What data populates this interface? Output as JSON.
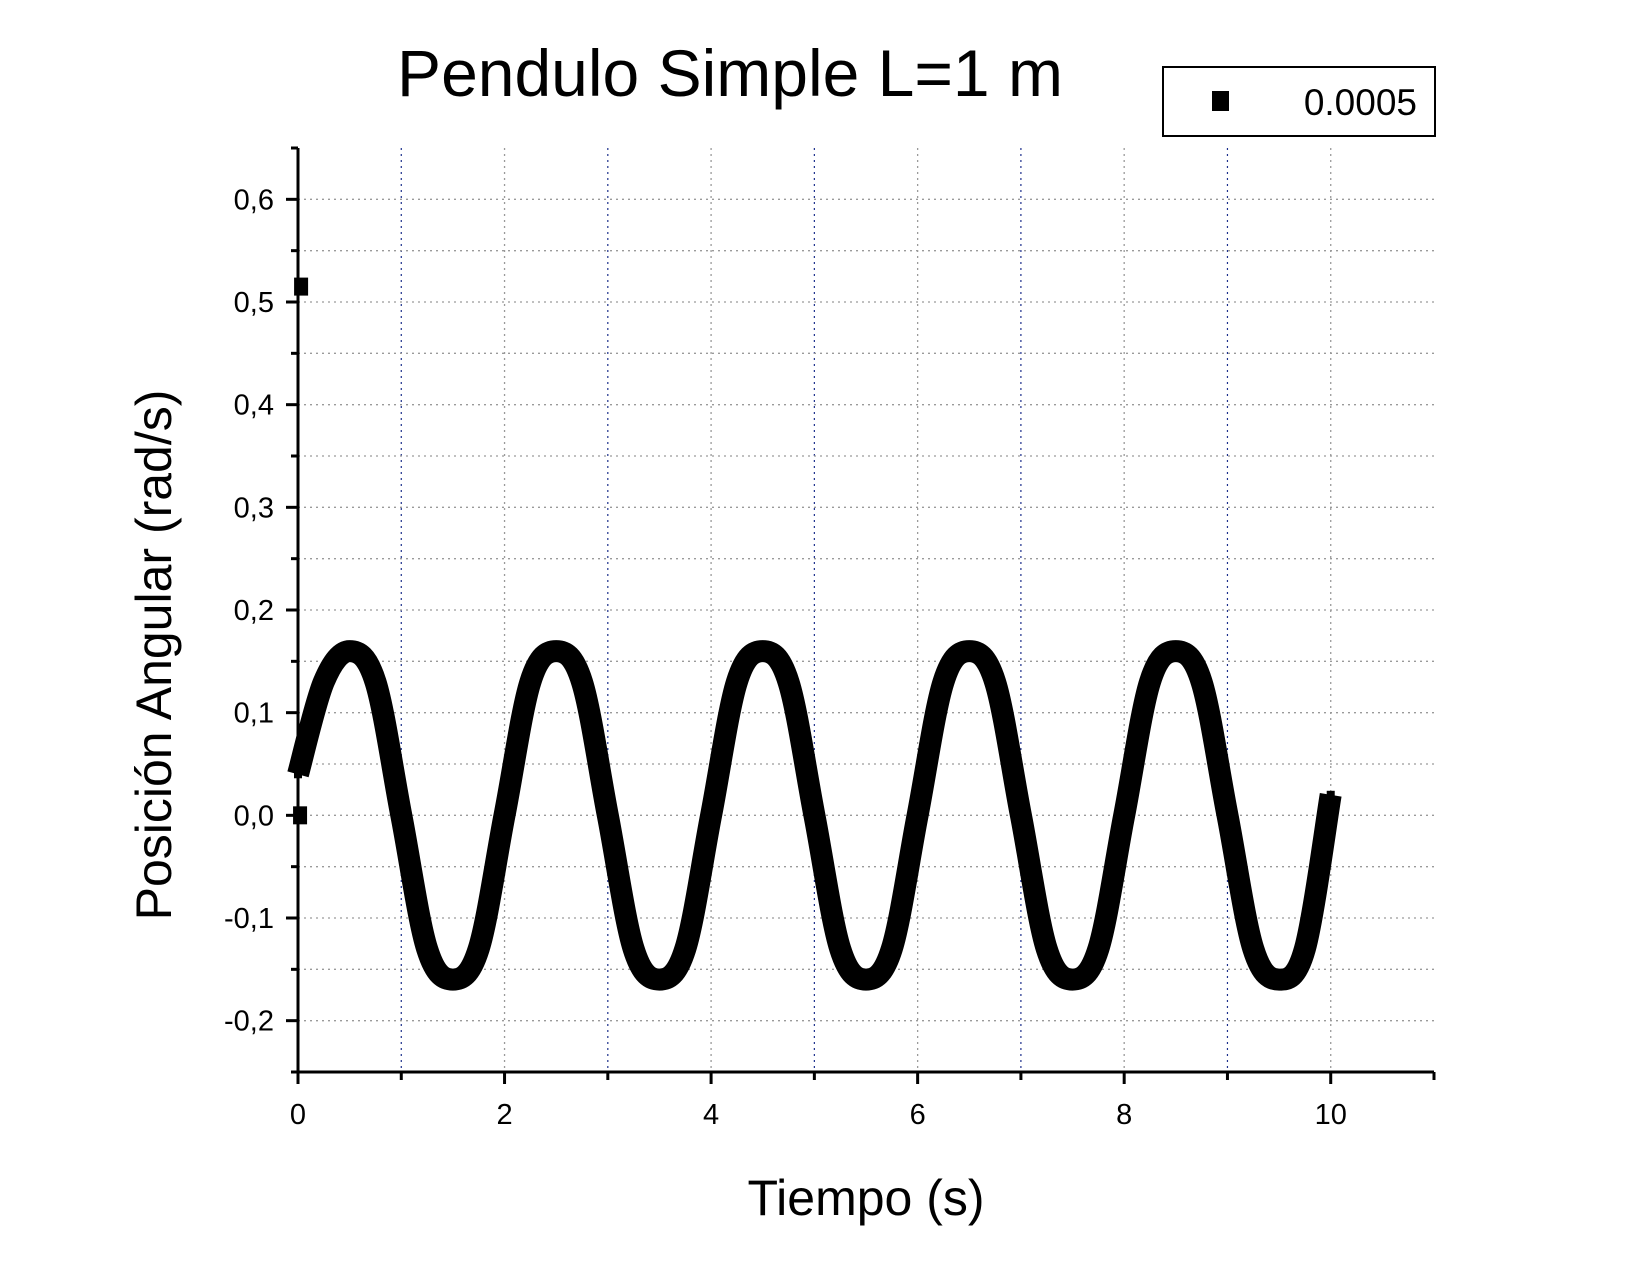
{
  "chart_data": {
    "type": "line",
    "title": "Pendulo Simple L=1 m",
    "xlabel": "Tiempo (s)",
    "ylabel": "Posición Angular (rad/s)",
    "xlim": [
      0,
      11
    ],
    "ylim": [
      -0.25,
      0.65
    ],
    "x_ticks": [
      0,
      2,
      4,
      6,
      8,
      10
    ],
    "x_tick_labels": [
      "0",
      "2",
      "4",
      "6",
      "8",
      "10"
    ],
    "y_ticks": [
      -0.2,
      -0.1,
      0.0,
      0.1,
      0.2,
      0.3,
      0.4,
      0.5,
      0.6
    ],
    "y_tick_labels": [
      "-0,2",
      "-0,1",
      "0,0",
      "0,1",
      "0,2",
      "0,3",
      "0,4",
      "0,5",
      "0,6"
    ],
    "grid": true,
    "legend_position": "top-right",
    "series": [
      {
        "name": "0.0005",
        "color": "#000000",
        "marker": "square",
        "outlier_points": [
          {
            "x": 0.03,
            "y": 0.515
          },
          {
            "x": 0.02,
            "y": 0.0
          }
        ],
        "x": [
          0.0,
          0.25,
          0.5,
          0.75,
          1.0,
          1.25,
          1.5,
          1.75,
          2.0,
          2.25,
          2.5,
          2.75,
          3.0,
          3.25,
          3.5,
          3.75,
          4.0,
          4.25,
          4.5,
          4.75,
          5.0,
          5.25,
          5.5,
          5.75,
          6.0,
          6.25,
          6.5,
          6.75,
          7.0,
          7.25,
          7.5,
          7.75,
          8.0,
          8.25,
          8.5,
          8.75,
          9.0,
          9.25,
          9.5,
          9.75,
          10.0
        ],
        "y": [
          0.04,
          0.13,
          0.16,
          0.13,
          0.0,
          -0.13,
          -0.16,
          -0.13,
          0.0,
          0.13,
          0.16,
          0.13,
          0.0,
          -0.13,
          -0.16,
          -0.13,
          0.0,
          0.13,
          0.16,
          0.13,
          0.0,
          -0.13,
          -0.16,
          -0.13,
          0.0,
          0.13,
          0.16,
          0.13,
          0.0,
          -0.13,
          -0.16,
          -0.13,
          0.0,
          0.13,
          0.16,
          0.13,
          0.0,
          -0.13,
          -0.16,
          -0.13,
          0.02
        ]
      }
    ]
  }
}
